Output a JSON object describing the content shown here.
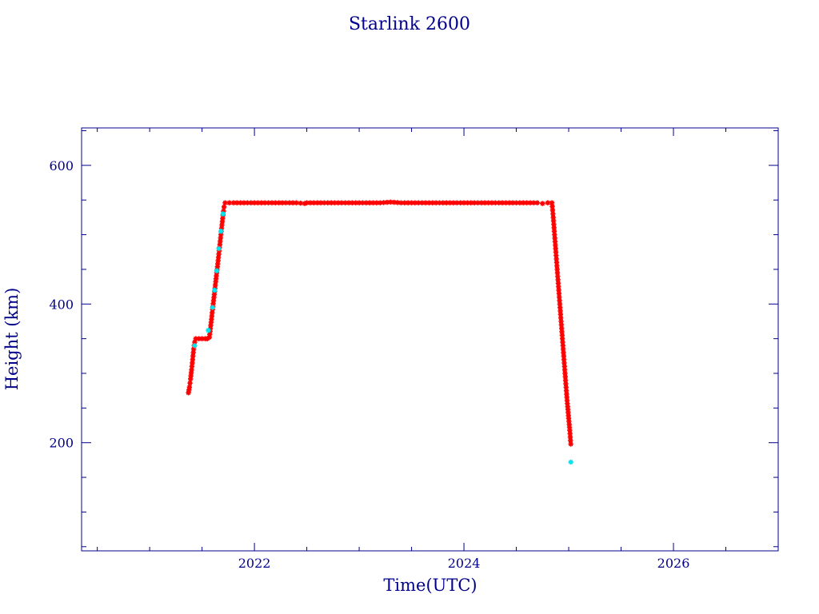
{
  "colors": {
    "axis": "#00008b",
    "text": "#00008b",
    "marker_primary": "#ff0000",
    "marker_secondary": "#00e5ee",
    "line": "#00008b"
  },
  "chart_data": {
    "type": "scatter",
    "title": "Starlink 2600",
    "xlabel": "Time(UTC)",
    "ylabel": "Height (km)",
    "xlim": [
      2020.35,
      2027.0
    ],
    "ylim": [
      44,
      654
    ],
    "x_ticks": [
      2022,
      2024,
      2026
    ],
    "x_tick_labels": [
      "2022",
      "2024",
      "2026"
    ],
    "x_minor_step": 0.5,
    "y_ticks": [
      200,
      400,
      600
    ],
    "y_tick_labels": [
      "200",
      "400",
      "600"
    ],
    "y_minor_step": 50,
    "grid": false,
    "series": [
      {
        "color": "#ff0000",
        "marker": "asterisk",
        "connected": true,
        "points": [
          [
            2021.37,
            272
          ],
          [
            2021.38,
            280
          ],
          [
            2021.39,
            292
          ],
          [
            2021.4,
            305
          ],
          [
            2021.41,
            320
          ],
          [
            2021.42,
            335
          ],
          [
            2021.43,
            345
          ],
          [
            2021.44,
            350
          ],
          [
            2021.47,
            350
          ],
          [
            2021.5,
            350
          ],
          [
            2021.53,
            350
          ],
          [
            2021.55,
            350
          ],
          [
            2021.57,
            352
          ],
          [
            2021.58,
            365
          ],
          [
            2021.59,
            378
          ],
          [
            2021.6,
            392
          ],
          [
            2021.61,
            405
          ],
          [
            2021.62,
            418
          ],
          [
            2021.63,
            432
          ],
          [
            2021.64,
            445
          ],
          [
            2021.65,
            458
          ],
          [
            2021.66,
            472
          ],
          [
            2021.67,
            486
          ],
          [
            2021.68,
            500
          ],
          [
            2021.69,
            514
          ],
          [
            2021.7,
            528
          ],
          [
            2021.71,
            540
          ],
          [
            2021.72,
            546
          ],
          [
            2021.8,
            546
          ],
          [
            2021.9,
            546
          ],
          [
            2022.0,
            546
          ],
          [
            2022.1,
            546
          ],
          [
            2022.2,
            546
          ],
          [
            2022.3,
            546
          ],
          [
            2022.4,
            546
          ],
          [
            2022.48,
            545
          ],
          [
            2022.5,
            546
          ],
          [
            2022.6,
            546
          ],
          [
            2022.7,
            546
          ],
          [
            2022.8,
            546
          ],
          [
            2022.9,
            546
          ],
          [
            2023.0,
            546
          ],
          [
            2023.1,
            546
          ],
          [
            2023.2,
            546
          ],
          [
            2023.3,
            547
          ],
          [
            2023.4,
            546
          ],
          [
            2023.5,
            546
          ],
          [
            2023.6,
            546
          ],
          [
            2023.7,
            546
          ],
          [
            2023.8,
            546
          ],
          [
            2023.9,
            546
          ],
          [
            2024.0,
            546
          ],
          [
            2024.1,
            546
          ],
          [
            2024.2,
            546
          ],
          [
            2024.3,
            546
          ],
          [
            2024.4,
            546
          ],
          [
            2024.5,
            546
          ],
          [
            2024.6,
            546
          ],
          [
            2024.7,
            546
          ],
          [
            2024.75,
            545
          ],
          [
            2024.8,
            546
          ],
          [
            2024.84,
            546
          ],
          [
            2024.85,
            530
          ],
          [
            2024.86,
            510
          ],
          [
            2024.87,
            490
          ],
          [
            2024.88,
            470
          ],
          [
            2024.89,
            450
          ],
          [
            2024.9,
            430
          ],
          [
            2024.91,
            410
          ],
          [
            2024.92,
            390
          ],
          [
            2024.93,
            370
          ],
          [
            2024.94,
            350
          ],
          [
            2024.95,
            330
          ],
          [
            2024.96,
            310
          ],
          [
            2024.97,
            290
          ],
          [
            2024.98,
            270
          ],
          [
            2024.99,
            252
          ],
          [
            2025.0,
            235
          ],
          [
            2025.01,
            218
          ],
          [
            2025.02,
            198
          ]
        ]
      },
      {
        "color": "#00e5ee",
        "marker": "asterisk",
        "connected": false,
        "points": [
          [
            2021.43,
            340
          ],
          [
            2021.56,
            362
          ],
          [
            2021.6,
            395
          ],
          [
            2021.62,
            420
          ],
          [
            2021.64,
            448
          ],
          [
            2021.66,
            480
          ],
          [
            2021.68,
            505
          ],
          [
            2021.7,
            530
          ],
          [
            2025.02,
            172
          ]
        ]
      }
    ]
  }
}
